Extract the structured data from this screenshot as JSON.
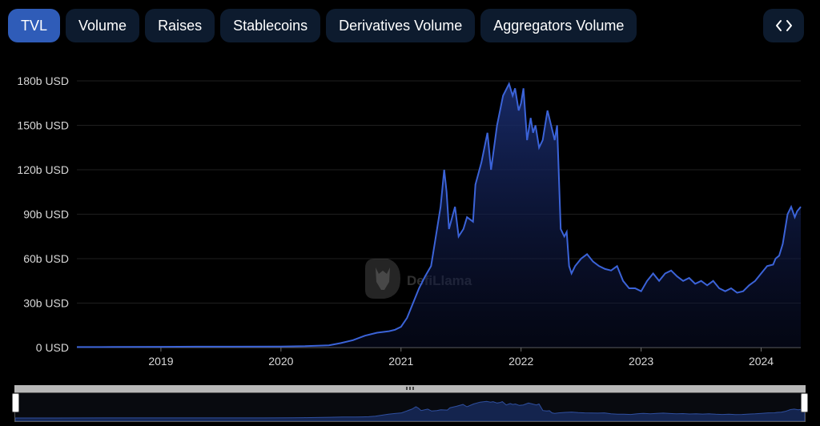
{
  "tabs": [
    {
      "label": "TVL",
      "active": true
    },
    {
      "label": "Volume",
      "active": false
    },
    {
      "label": "Raises",
      "active": false
    },
    {
      "label": "Stablecoins",
      "active": false
    },
    {
      "label": "Derivatives Volume",
      "active": false
    },
    {
      "label": "Aggregators Volume",
      "active": false
    }
  ],
  "embed_button": {
    "icon": "code-icon"
  },
  "watermark": {
    "text": "DefiLlama"
  },
  "chart_data": {
    "type": "area",
    "ylim": [
      0,
      180
    ],
    "yticks": [
      {
        "value": 0,
        "label": "0 USD"
      },
      {
        "value": 30,
        "label": "30b USD"
      },
      {
        "value": 60,
        "label": "60b USD"
      },
      {
        "value": 90,
        "label": "90b USD"
      },
      {
        "value": 120,
        "label": "120b USD"
      },
      {
        "value": 150,
        "label": "150b USD"
      },
      {
        "value": 180,
        "label": "180b USD"
      }
    ],
    "xlim": [
      2018.3,
      2024.33
    ],
    "xticks": [
      {
        "value": 2019,
        "label": "2019"
      },
      {
        "value": 2020,
        "label": "2020"
      },
      {
        "value": 2021,
        "label": "2021"
      },
      {
        "value": 2022,
        "label": "2022"
      },
      {
        "value": 2023,
        "label": "2023"
      },
      {
        "value": 2024,
        "label": "2024"
      }
    ],
    "grid": true,
    "line_color": "#3b63d8",
    "series": [
      {
        "x": [
          2018.3,
          2018.6,
          2019.0,
          2019.3,
          2019.6,
          2020.0,
          2020.2,
          2020.4,
          2020.5,
          2020.6,
          2020.7,
          2020.8,
          2020.9,
          2020.95,
          2021.0,
          2021.05,
          2021.1,
          2021.15,
          2021.2,
          2021.25,
          2021.28,
          2021.33,
          2021.36,
          2021.38,
          2021.4,
          2021.45,
          2021.48,
          2021.52,
          2021.55,
          2021.6,
          2021.62,
          2021.67,
          2021.72,
          2021.75,
          2021.8,
          2021.85,
          2021.9,
          2021.93,
          2021.95,
          2021.98,
          2022.0,
          2022.02,
          2022.05,
          2022.08,
          2022.1,
          2022.12,
          2022.15,
          2022.18,
          2022.2,
          2022.22,
          2022.25,
          2022.28,
          2022.3,
          2022.33,
          2022.36,
          2022.38,
          2022.4,
          2022.42,
          2022.45,
          2022.5,
          2022.55,
          2022.6,
          2022.65,
          2022.7,
          2022.75,
          2022.8,
          2022.85,
          2022.9,
          2022.95,
          2023.0,
          2023.05,
          2023.08,
          2023.1,
          2023.15,
          2023.2,
          2023.25,
          2023.3,
          2023.35,
          2023.4,
          2023.45,
          2023.5,
          2023.55,
          2023.6,
          2023.65,
          2023.7,
          2023.75,
          2023.8,
          2023.85,
          2023.9,
          2023.95,
          2024.0,
          2024.05,
          2024.1,
          2024.12,
          2024.15,
          2024.18,
          2024.2,
          2024.22,
          2024.25,
          2024.28,
          2024.3,
          2024.33
        ],
        "y": [
          0.3,
          0.4,
          0.5,
          0.6,
          0.6,
          0.7,
          0.9,
          1.5,
          3,
          5,
          8,
          10,
          11,
          12,
          14,
          20,
          30,
          40,
          48,
          55,
          70,
          95,
          120,
          105,
          80,
          95,
          75,
          80,
          88,
          85,
          110,
          125,
          145,
          120,
          150,
          170,
          178,
          170,
          175,
          160,
          165,
          175,
          140,
          155,
          145,
          150,
          135,
          140,
          150,
          160,
          150,
          140,
          150,
          80,
          75,
          78,
          55,
          50,
          55,
          60,
          63,
          58,
          55,
          53,
          52,
          55,
          45,
          40,
          40,
          38,
          45,
          48,
          50,
          45,
          50,
          52,
          48,
          45,
          47,
          43,
          45,
          42,
          45,
          40,
          38,
          40,
          37,
          38,
          42,
          45,
          50,
          55,
          56,
          60,
          62,
          70,
          80,
          90,
          95,
          88,
          92,
          95
        ]
      }
    ]
  }
}
